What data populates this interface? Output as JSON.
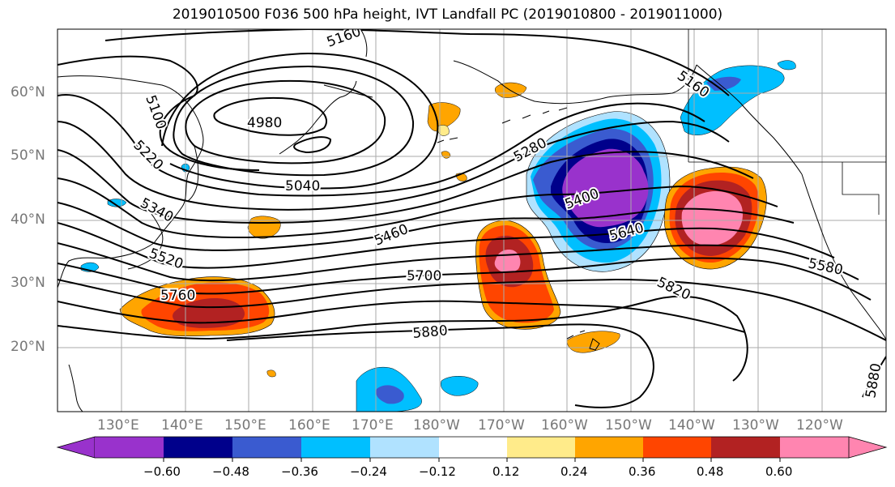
{
  "title": "2019010500 F036 500 hPa height, IVT Landfall PC (2019010800 - 2019011000)",
  "lat_labels": [
    "60°N",
    "50°N",
    "40°N",
    "30°N",
    "20°N"
  ],
  "lon_labels": [
    "130°E",
    "140°E",
    "150°E",
    "160°E",
    "170°E",
    "180°W",
    "170°W",
    "160°W",
    "150°W",
    "140°W",
    "130°W",
    "120°W"
  ],
  "contour_labels": [
    "5160",
    "5160",
    "5100",
    "4980",
    "5220",
    "5040",
    "5280",
    "5340",
    "5400",
    "5460",
    "5520",
    "5580",
    "5640",
    "5700",
    "5760",
    "5820",
    "5880",
    "5880"
  ],
  "colorbar": {
    "ticks": [
      "−0.60",
      "−0.48",
      "−0.36",
      "−0.24",
      "−0.12",
      "0.12",
      "0.24",
      "0.36",
      "0.48",
      "0.60"
    ],
    "colors": [
      "#9932cc",
      "#00008b",
      "#3a5bd0",
      "#00bfff",
      "#b0e2ff",
      "#ffffff",
      "#ffeb8a",
      "#ffa500",
      "#ff4500",
      "#b22222",
      "#ff85b0",
      "#ff85b0"
    ]
  }
}
